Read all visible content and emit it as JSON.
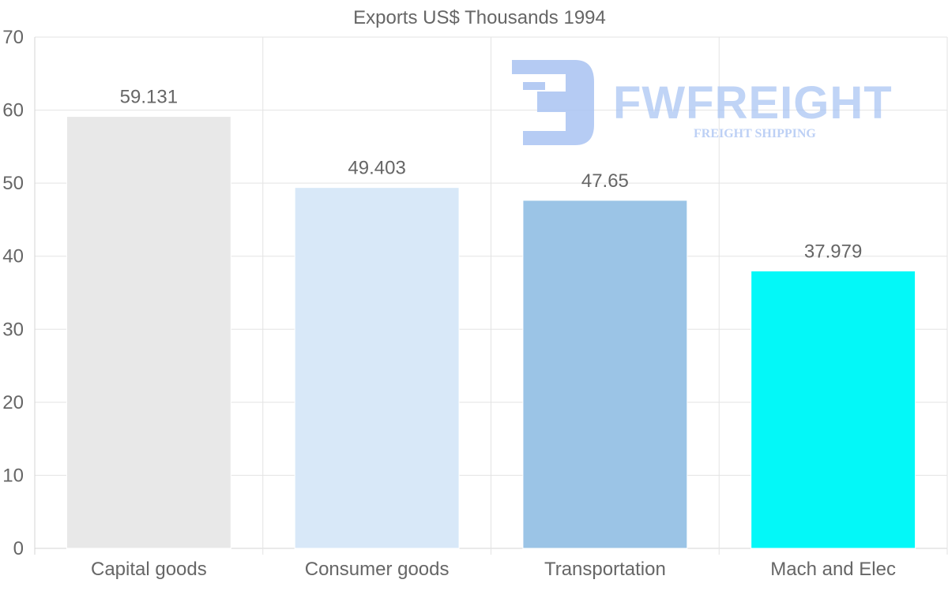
{
  "chart_data": {
    "type": "bar",
    "title": "Exports US$ Thousands 1994",
    "categories": [
      "Capital goods",
      "Consumer goods",
      "Transportation",
      "Mach and Elec"
    ],
    "values": [
      59.131,
      49.403,
      47.65,
      37.979
    ],
    "data_labels": [
      "59.131",
      "49.403",
      "47.65",
      "37.979"
    ],
    "bar_colors": [
      "#e8e8e8",
      "#d8e8f8",
      "#9bc4e6",
      "#03f8f8"
    ],
    "ylim": [
      0,
      70
    ],
    "yticks": [
      0,
      10,
      20,
      30,
      40,
      50,
      60,
      70
    ],
    "xlabel": "",
    "ylabel": "",
    "grid": true
  },
  "watermark": {
    "name": "FWFREIGHT",
    "tagline": "FREIGHT SHIPPING",
    "color": "#a9c3f2"
  }
}
